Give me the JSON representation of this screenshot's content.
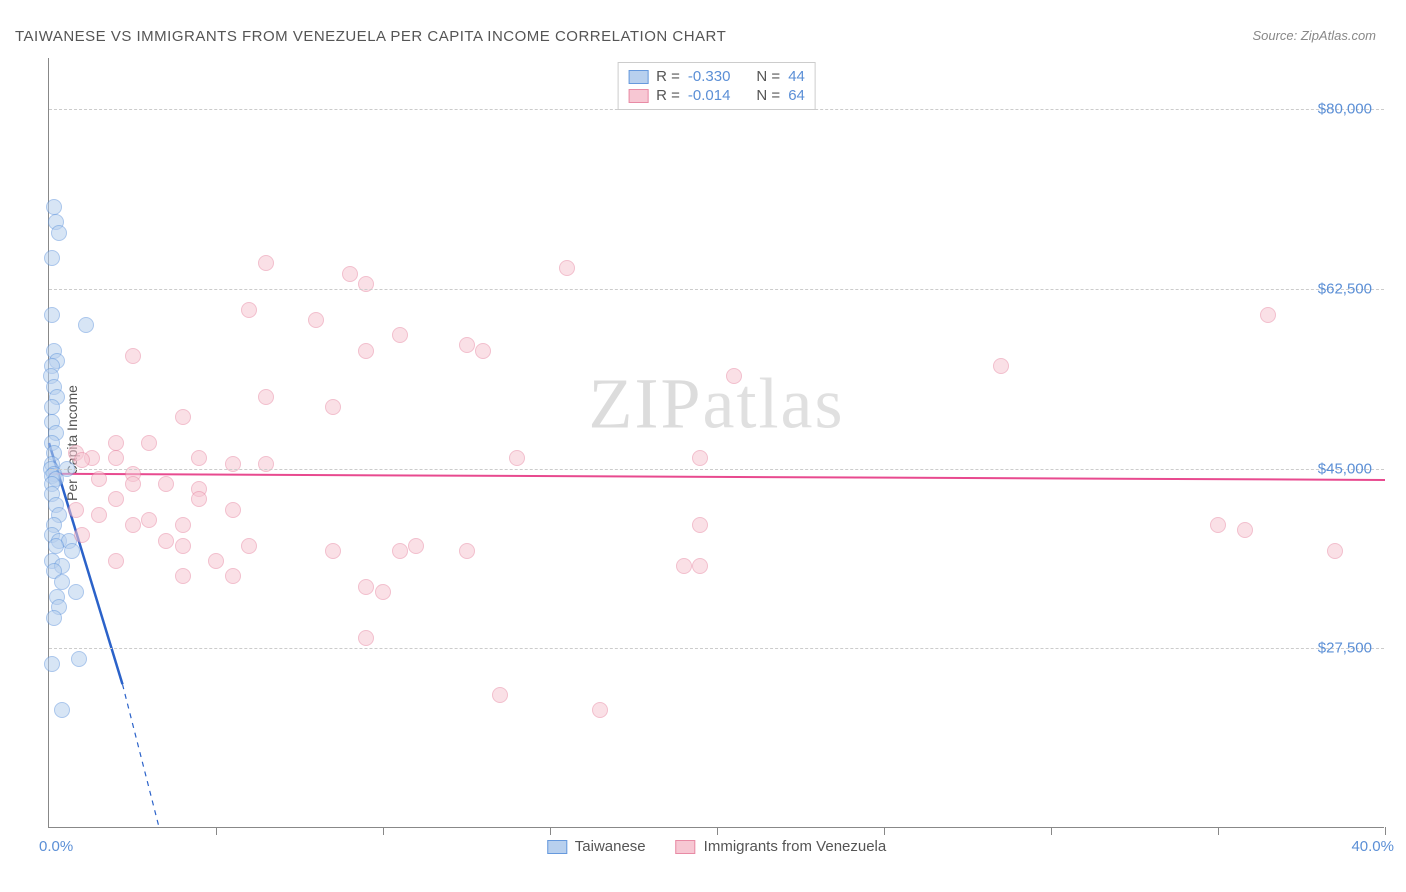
{
  "title": "TAIWANESE VS IMMIGRANTS FROM VENEZUELA PER CAPITA INCOME CORRELATION CHART",
  "source": "Source: ZipAtlas.com",
  "watermark": {
    "part1": "ZIP",
    "part2": "atlas"
  },
  "y_axis_label": "Per Capita Income",
  "chart": {
    "type": "scatter",
    "background_color": "#ffffff",
    "grid_color": "#cccccc",
    "axis_color": "#888888",
    "xlim": [
      0,
      40
    ],
    "ylim": [
      10000,
      85000
    ],
    "x_tick_positions": [
      0,
      5,
      10,
      15,
      20,
      25,
      30,
      35,
      40
    ],
    "x_start_label": "0.0%",
    "x_end_label": "40.0%",
    "y_ticks": [
      {
        "value": 27500,
        "label": "$27,500"
      },
      {
        "value": 45000,
        "label": "$45,000"
      },
      {
        "value": 62500,
        "label": "$62,500"
      },
      {
        "value": 80000,
        "label": "$80,000"
      }
    ],
    "marker_radius": 8,
    "tick_label_color": "#5b8fd6",
    "tick_label_fontsize": 15
  },
  "series": [
    {
      "name": "Taiwanese",
      "fill_color": "#b8d0ee",
      "stroke_color": "#6699dd",
      "fill_opacity": 0.55,
      "stats": {
        "R": "-0.330",
        "N": "44"
      },
      "trend": {
        "x1": 0,
        "y1": 47500,
        "x2": 2.2,
        "y2": 24000,
        "color": "#2b62c9",
        "width": 2.5,
        "dash_extend": {
          "x2": 3.3,
          "y2": 10000
        }
      },
      "points": [
        [
          0.15,
          70500
        ],
        [
          0.2,
          69000
        ],
        [
          0.3,
          68000
        ],
        [
          0.1,
          65500
        ],
        [
          0.1,
          60000
        ],
        [
          1.1,
          59000
        ],
        [
          0.15,
          56500
        ],
        [
          0.25,
          55500
        ],
        [
          0.1,
          55000
        ],
        [
          0.05,
          54000
        ],
        [
          0.15,
          53000
        ],
        [
          0.25,
          52000
        ],
        [
          0.1,
          51000
        ],
        [
          0.1,
          49500
        ],
        [
          0.2,
          48500
        ],
        [
          0.1,
          47500
        ],
        [
          0.15,
          46500
        ],
        [
          0.1,
          45500
        ],
        [
          0.05,
          45000
        ],
        [
          0.55,
          45000
        ],
        [
          0.15,
          44500
        ],
        [
          0.1,
          44300
        ],
        [
          0.2,
          44000
        ],
        [
          0.1,
          43500
        ],
        [
          0.1,
          42500
        ],
        [
          0.2,
          41500
        ],
        [
          0.3,
          40500
        ],
        [
          0.15,
          39500
        ],
        [
          0.1,
          38500
        ],
        [
          0.3,
          38000
        ],
        [
          0.6,
          38000
        ],
        [
          0.2,
          37500
        ],
        [
          0.7,
          37000
        ],
        [
          0.1,
          36000
        ],
        [
          0.4,
          35500
        ],
        [
          0.15,
          35000
        ],
        [
          0.4,
          34000
        ],
        [
          0.8,
          33000
        ],
        [
          0.25,
          32500
        ],
        [
          0.3,
          31500
        ],
        [
          0.15,
          30500
        ],
        [
          0.9,
          26500
        ],
        [
          0.1,
          26000
        ],
        [
          0.4,
          21500
        ]
      ]
    },
    {
      "name": "Immigrants from Venezuela",
      "fill_color": "#f7c7d3",
      "stroke_color": "#e88ba5",
      "fill_opacity": 0.55,
      "stats": {
        "R": "-0.014",
        "N": "64"
      },
      "trend": {
        "x1": 0,
        "y1": 44500,
        "x2": 40,
        "y2": 43900,
        "color": "#e84a8f",
        "width": 2,
        "dash_extend": null
      },
      "points": [
        [
          6.5,
          65000
        ],
        [
          9.0,
          64000
        ],
        [
          9.5,
          63000
        ],
        [
          15.5,
          64500
        ],
        [
          36.5,
          60000
        ],
        [
          6.0,
          60500
        ],
        [
          8.0,
          59500
        ],
        [
          10.5,
          58000
        ],
        [
          12.5,
          57000
        ],
        [
          2.5,
          56000
        ],
        [
          9.5,
          56500
        ],
        [
          13.0,
          56500
        ],
        [
          28.5,
          55000
        ],
        [
          20.5,
          54000
        ],
        [
          6.5,
          52000
        ],
        [
          8.5,
          51000
        ],
        [
          4.0,
          50000
        ],
        [
          2.0,
          47500
        ],
        [
          3.0,
          47500
        ],
        [
          0.8,
          46500
        ],
        [
          1.3,
          46000
        ],
        [
          2.0,
          46000
        ],
        [
          4.5,
          46000
        ],
        [
          5.5,
          45500
        ],
        [
          6.5,
          45500
        ],
        [
          14.0,
          46000
        ],
        [
          19.5,
          46000
        ],
        [
          1.0,
          45800
        ],
        [
          2.5,
          44500
        ],
        [
          1.5,
          44000
        ],
        [
          2.5,
          43500
        ],
        [
          3.5,
          43500
        ],
        [
          4.5,
          43000
        ],
        [
          2.0,
          42000
        ],
        [
          4.5,
          42000
        ],
        [
          5.5,
          41000
        ],
        [
          0.8,
          41000
        ],
        [
          1.5,
          40500
        ],
        [
          3.0,
          40000
        ],
        [
          2.5,
          39500
        ],
        [
          4.0,
          39500
        ],
        [
          19.5,
          39500
        ],
        [
          35.0,
          39500
        ],
        [
          35.8,
          39000
        ],
        [
          1.0,
          38500
        ],
        [
          3.5,
          38000
        ],
        [
          4.0,
          37500
        ],
        [
          6.0,
          37500
        ],
        [
          38.5,
          37000
        ],
        [
          2.0,
          36000
        ],
        [
          5.0,
          36000
        ],
        [
          8.5,
          37000
        ],
        [
          10.5,
          37000
        ],
        [
          11.0,
          37500
        ],
        [
          12.5,
          37000
        ],
        [
          9.5,
          33500
        ],
        [
          10.0,
          33000
        ],
        [
          4.0,
          34500
        ],
        [
          5.5,
          34500
        ],
        [
          19.0,
          35500
        ],
        [
          19.5,
          35500
        ],
        [
          9.5,
          28500
        ],
        [
          13.5,
          23000
        ],
        [
          16.5,
          21500
        ]
      ]
    }
  ],
  "stats_legend_labels": {
    "r_label": "R =",
    "n_label": "N ="
  }
}
